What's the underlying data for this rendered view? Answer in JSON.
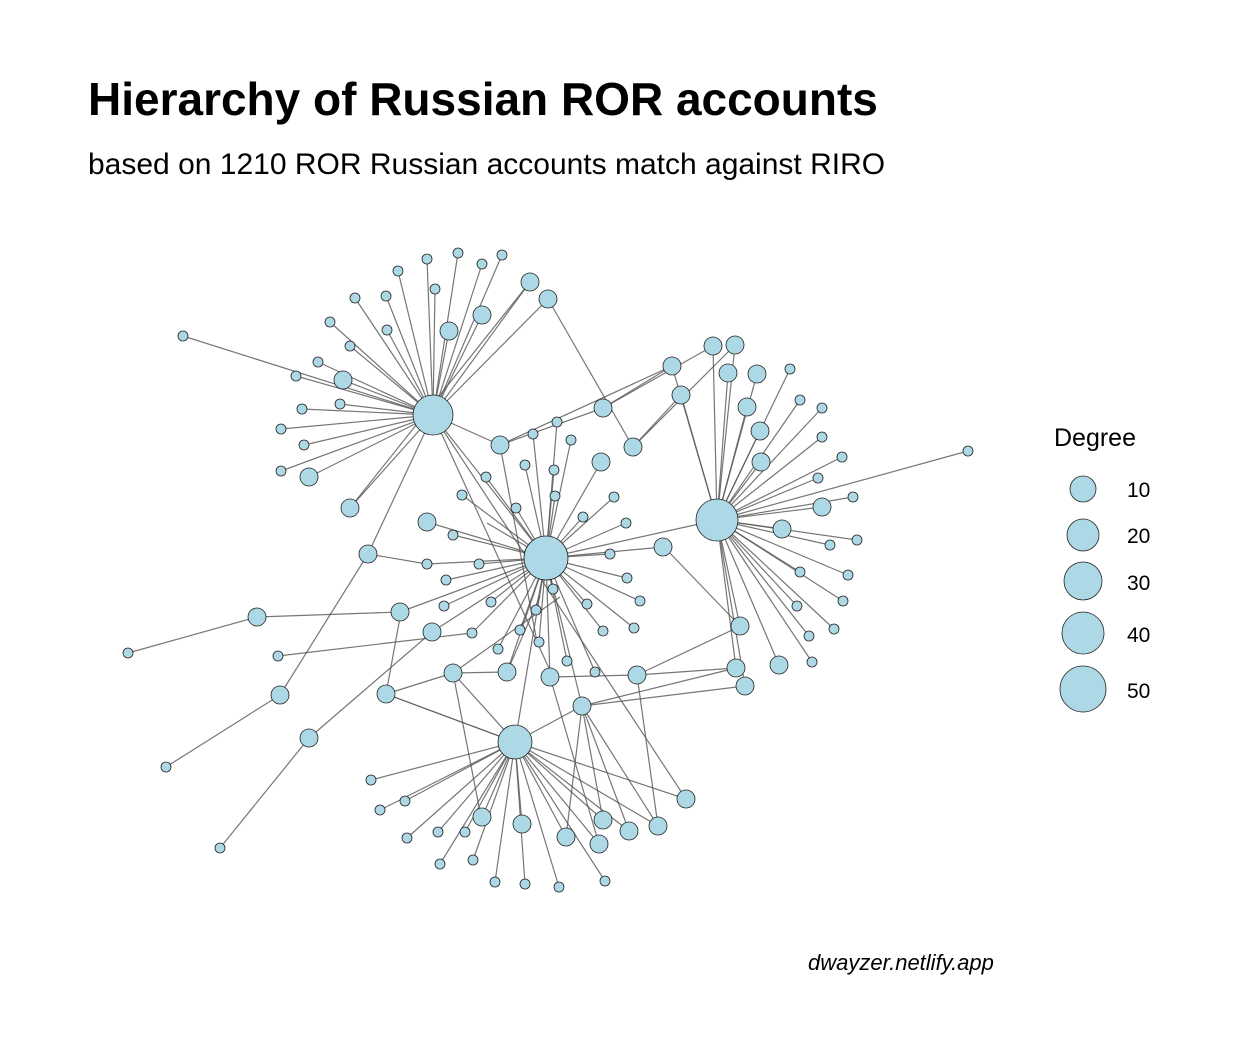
{
  "title": "Hierarchy of Russian ROR accounts",
  "subtitle": "based on 1210 ROR Russian accounts match against RIRO",
  "caption": "dwayzer.netlify.app",
  "legend": {
    "title": "Degree",
    "items": [
      "10",
      "20",
      "30",
      "40",
      "50"
    ]
  },
  "colors": {
    "node_fill": "#add8e6",
    "node_stroke": "#222222",
    "edge": "#555555"
  }
}
